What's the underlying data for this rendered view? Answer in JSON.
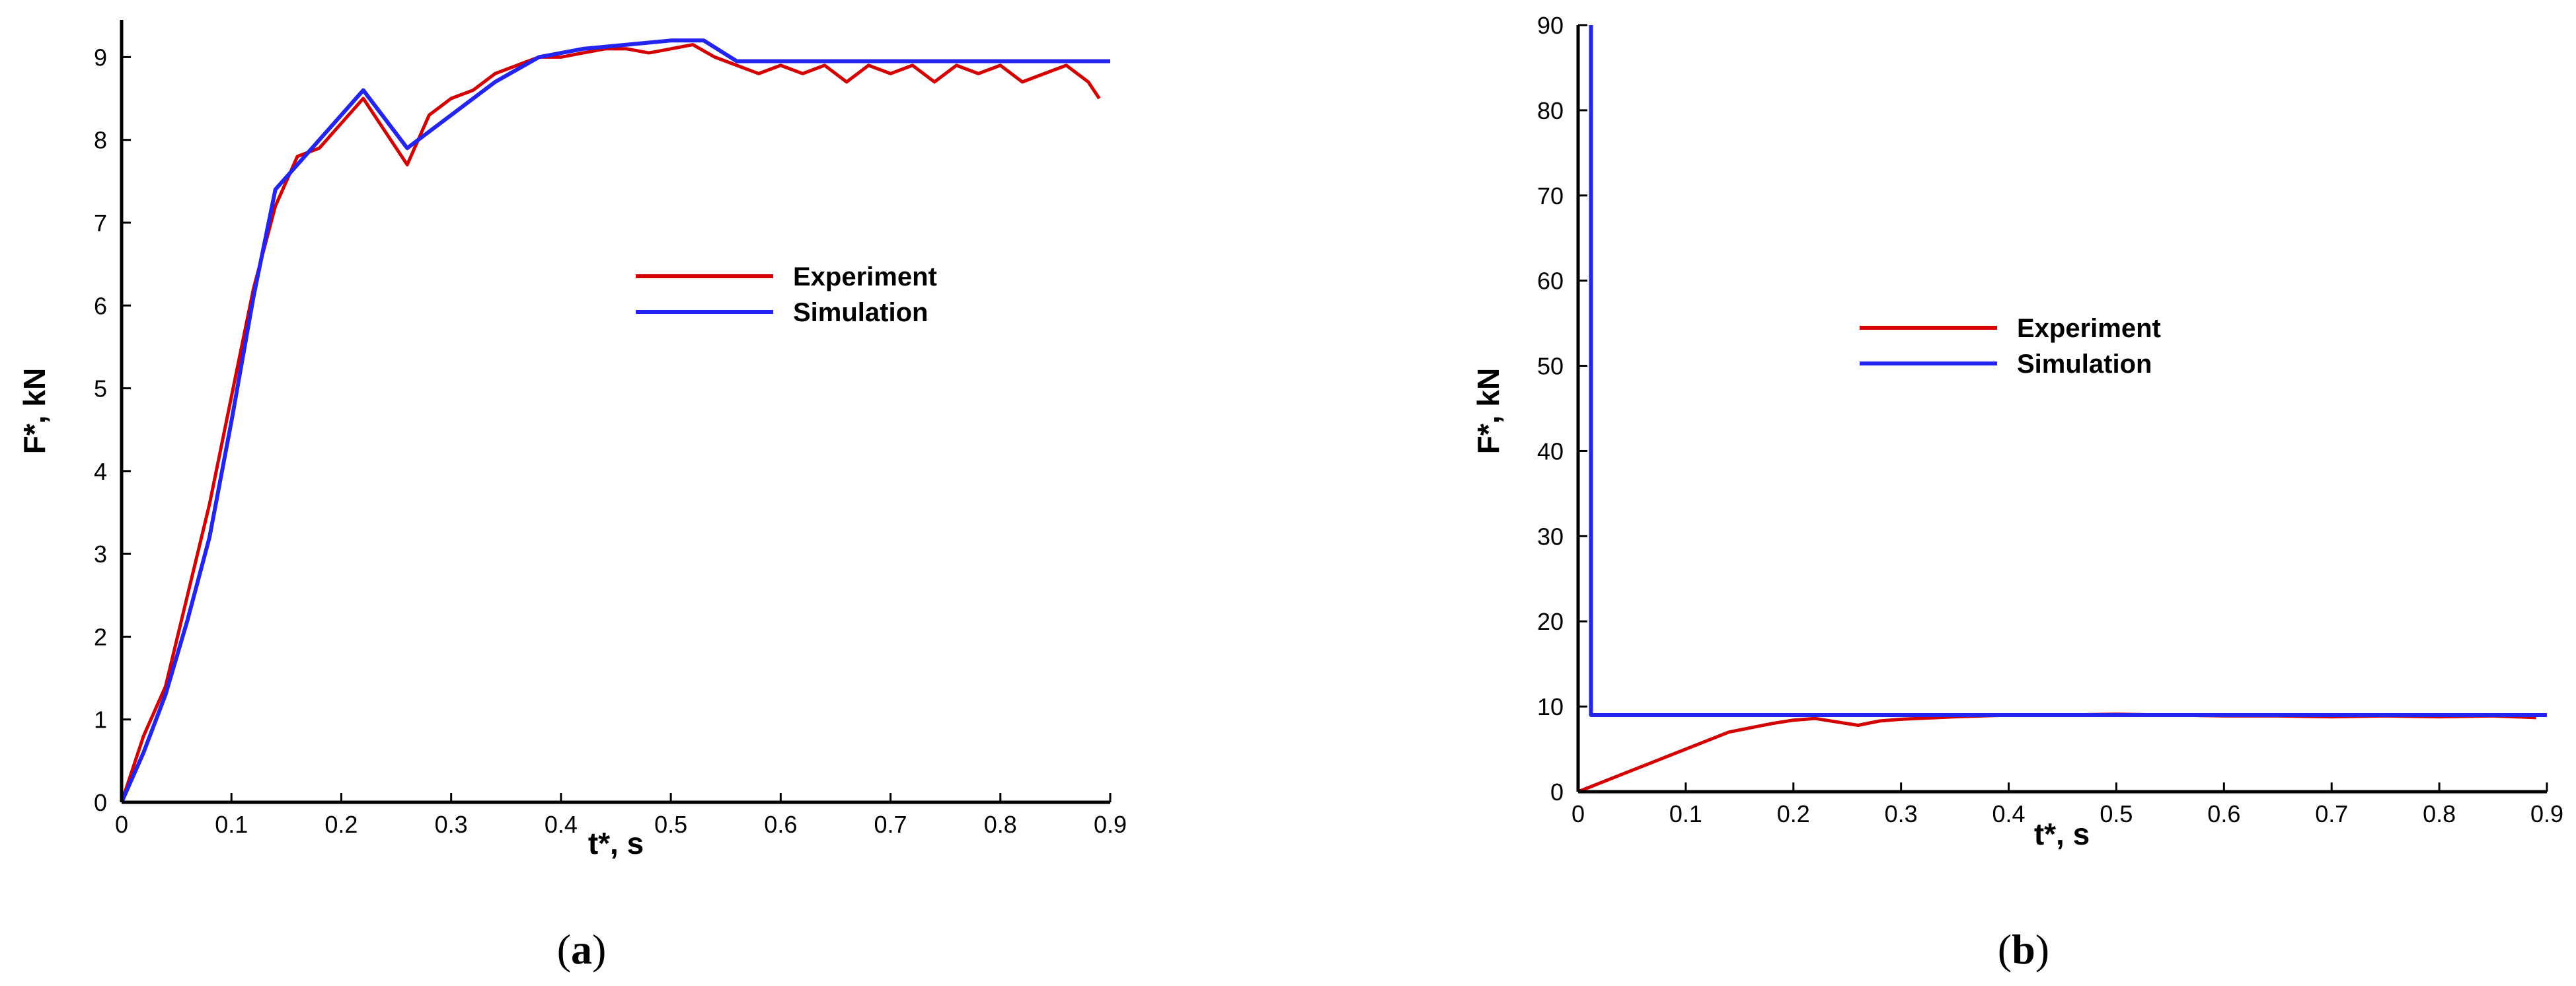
{
  "chart_data": [
    {
      "type": "line",
      "panel_label": "a",
      "xlabel": "t*, s",
      "ylabel": "F*, kN",
      "xlim": [
        0,
        0.9
      ],
      "ylim": [
        0,
        9.45
      ],
      "xticks": [
        "0",
        "0.1",
        "0.2",
        "0.3",
        "0.4",
        "0.5",
        "0.6",
        "0.7",
        "0.8",
        "0.9"
      ],
      "yticks": [
        "0",
        "1",
        "2",
        "3",
        "4",
        "5",
        "6",
        "7",
        "8",
        "9"
      ],
      "legend_position": "center-right",
      "series": [
        {
          "name": "Experiment",
          "color": "#d40000",
          "x": [
            0,
            0.02,
            0.04,
            0.06,
            0.08,
            0.1,
            0.12,
            0.14,
            0.16,
            0.18,
            0.2,
            0.22,
            0.24,
            0.26,
            0.28,
            0.3,
            0.32,
            0.34,
            0.36,
            0.38,
            0.4,
            0.42,
            0.44,
            0.46,
            0.48,
            0.5,
            0.52,
            0.54,
            0.56,
            0.58,
            0.6,
            0.62,
            0.64,
            0.66,
            0.68,
            0.7,
            0.72,
            0.74,
            0.76,
            0.78,
            0.8,
            0.82,
            0.84,
            0.86,
            0.88,
            0.89
          ],
          "y": [
            0,
            0.8,
            1.4,
            2.5,
            3.6,
            4.9,
            6.2,
            7.2,
            7.8,
            7.9,
            8.2,
            8.5,
            8.1,
            7.7,
            8.3,
            8.5,
            8.6,
            8.8,
            8.9,
            9.0,
            9.0,
            9.05,
            9.1,
            9.1,
            9.05,
            9.1,
            9.15,
            9.0,
            8.9,
            8.8,
            8.9,
            8.8,
            8.9,
            8.7,
            8.9,
            8.8,
            8.9,
            8.7,
            8.9,
            8.8,
            8.9,
            8.7,
            8.8,
            8.9,
            8.7,
            8.5
          ]
        },
        {
          "name": "Simulation",
          "color": "#2424f0",
          "x": [
            0,
            0.02,
            0.04,
            0.06,
            0.08,
            0.1,
            0.12,
            0.14,
            0.22,
            0.26,
            0.3,
            0.34,
            0.38,
            0.42,
            0.46,
            0.5,
            0.53,
            0.56,
            0.6,
            0.7,
            0.8,
            0.9
          ],
          "y": [
            0,
            0.6,
            1.3,
            2.2,
            3.2,
            4.6,
            6.1,
            7.4,
            8.6,
            7.9,
            8.3,
            8.7,
            9.0,
            9.1,
            9.15,
            9.2,
            9.2,
            8.95,
            8.95,
            8.95,
            8.95,
            8.95
          ]
        }
      ]
    },
    {
      "type": "line",
      "panel_label": "b",
      "xlabel": "t*, s",
      "ylabel": "F*, kN",
      "xlim": [
        0,
        0.9
      ],
      "ylim": [
        0,
        90
      ],
      "xticks": [
        "0",
        "0.1",
        "0.2",
        "0.3",
        "0.4",
        "0.5",
        "0.6",
        "0.7",
        "0.8",
        "0.9"
      ],
      "yticks": [
        "0",
        "10",
        "20",
        "30",
        "40",
        "50",
        "60",
        "70",
        "80",
        "90"
      ],
      "legend_position": "center",
      "series": [
        {
          "name": "Experiment",
          "color": "#d40000",
          "x": [
            0,
            0.02,
            0.04,
            0.06,
            0.08,
            0.1,
            0.12,
            0.14,
            0.16,
            0.18,
            0.2,
            0.22,
            0.24,
            0.26,
            0.28,
            0.3,
            0.35,
            0.4,
            0.45,
            0.5,
            0.55,
            0.6,
            0.65,
            0.7,
            0.75,
            0.8,
            0.85,
            0.89
          ],
          "y": [
            0,
            1,
            2,
            3,
            4,
            5,
            6,
            7,
            7.5,
            8,
            8.4,
            8.6,
            8.2,
            7.8,
            8.3,
            8.5,
            8.8,
            9,
            9,
            9.1,
            9,
            8.9,
            8.9,
            8.8,
            8.9,
            8.8,
            8.9,
            8.7
          ]
        },
        {
          "name": "Simulation",
          "color": "#2424f0",
          "x": [
            0.012,
            0.012,
            0.9
          ],
          "y": [
            90,
            9,
            9
          ]
        }
      ]
    }
  ]
}
